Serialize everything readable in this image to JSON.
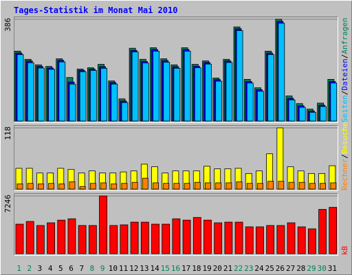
{
  "chart_data": [
    {
      "type": "bar",
      "title": "Tages-Statistik im Monat Mai 2010",
      "legend_separator": "/",
      "ylim": [
        0,
        386
      ],
      "yticks": [
        386
      ],
      "series": [
        {
          "name": "Anfragen",
          "color": "#00805c",
          "values": [
            265,
            234,
            213,
            207,
            236,
            165,
            197,
            202,
            215,
            152,
            84,
            276,
            234,
            278,
            236,
            213,
            278,
            215,
            228,
            163,
            234,
            357,
            158,
            126,
            265,
            386,
            95,
            66,
            45,
            68,
            158
          ]
        },
        {
          "name": "Dateien",
          "color": "#0000ff",
          "values": [
            258,
            228,
            207,
            201,
            230,
            148,
            192,
            197,
            206,
            146,
            76,
            268,
            226,
            271,
            229,
            206,
            271,
            208,
            222,
            157,
            228,
            350,
            150,
            119,
            258,
            378,
            86,
            58,
            38,
            60,
            150
          ]
        },
        {
          "name": "Seiten",
          "color": "#00c0ff",
          "values": [
            252,
            221,
            201,
            196,
            224,
            140,
            187,
            192,
            200,
            140,
            70,
            262,
            220,
            265,
            223,
            200,
            265,
            202,
            216,
            151,
            222,
            343,
            144,
            113,
            252,
            371,
            80,
            52,
            33,
            55,
            144
          ]
        }
      ]
    },
    {
      "type": "bar",
      "ylim": [
        0,
        118
      ],
      "yticks": [
        118
      ],
      "series": [
        {
          "name": "Besuche",
          "color": "#ffff00",
          "values": [
            40,
            40,
            31,
            31,
            40,
            38,
            31,
            35,
            31,
            31,
            33,
            35,
            48,
            43,
            31,
            35,
            35,
            35,
            44,
            39,
            39,
            40,
            30,
            35,
            68,
            118,
            43,
            35,
            30,
            30,
            45
          ]
        },
        {
          "name": "Rechner",
          "color": "#ff8000",
          "values": [
            10,
            11,
            10,
            11,
            10,
            14,
            5,
            11,
            12,
            10,
            11,
            13,
            21,
            12,
            11,
            11,
            11,
            13,
            12,
            12,
            12,
            14,
            11,
            11,
            15,
            15,
            13,
            13,
            11,
            11,
            12
          ]
        }
      ]
    },
    {
      "type": "bar",
      "ylim": [
        0,
        7246
      ],
      "yticks": [
        7246
      ],
      "categories": [
        "1",
        "2",
        "3",
        "4",
        "5",
        "6",
        "7",
        "8",
        "9",
        "10",
        "11",
        "12",
        "13",
        "14",
        "15",
        "16",
        "17",
        "18",
        "19",
        "20",
        "21",
        "22",
        "23",
        "24",
        "25",
        "26",
        "27",
        "28",
        "29",
        "30",
        "31"
      ],
      "category_colors": [
        "#00805c",
        "#00805c",
        "#000000",
        "#000000",
        "#000000",
        "#000000",
        "#000000",
        "#00805c",
        "#00805c",
        "#000000",
        "#000000",
        "#000000",
        "#000000",
        "#000000",
        "#00805c",
        "#00805c",
        "#000000",
        "#000000",
        "#000000",
        "#000000",
        "#000000",
        "#00805c",
        "#00805c",
        "#000000",
        "#000000",
        "#000000",
        "#000000",
        "#000000",
        "#00805c",
        "#00805c",
        "#000000"
      ],
      "series": [
        {
          "name": "kB",
          "color": "#ff0000",
          "values": [
            3707,
            4044,
            3539,
            3876,
            4213,
            4381,
            3539,
            3539,
            7246,
            3539,
            3623,
            3960,
            3960,
            3707,
            3707,
            4381,
            4213,
            4550,
            4213,
            3876,
            3960,
            3960,
            3370,
            3370,
            3539,
            3539,
            3876,
            3370,
            3117,
            5561,
            5814
          ]
        }
      ]
    }
  ]
}
